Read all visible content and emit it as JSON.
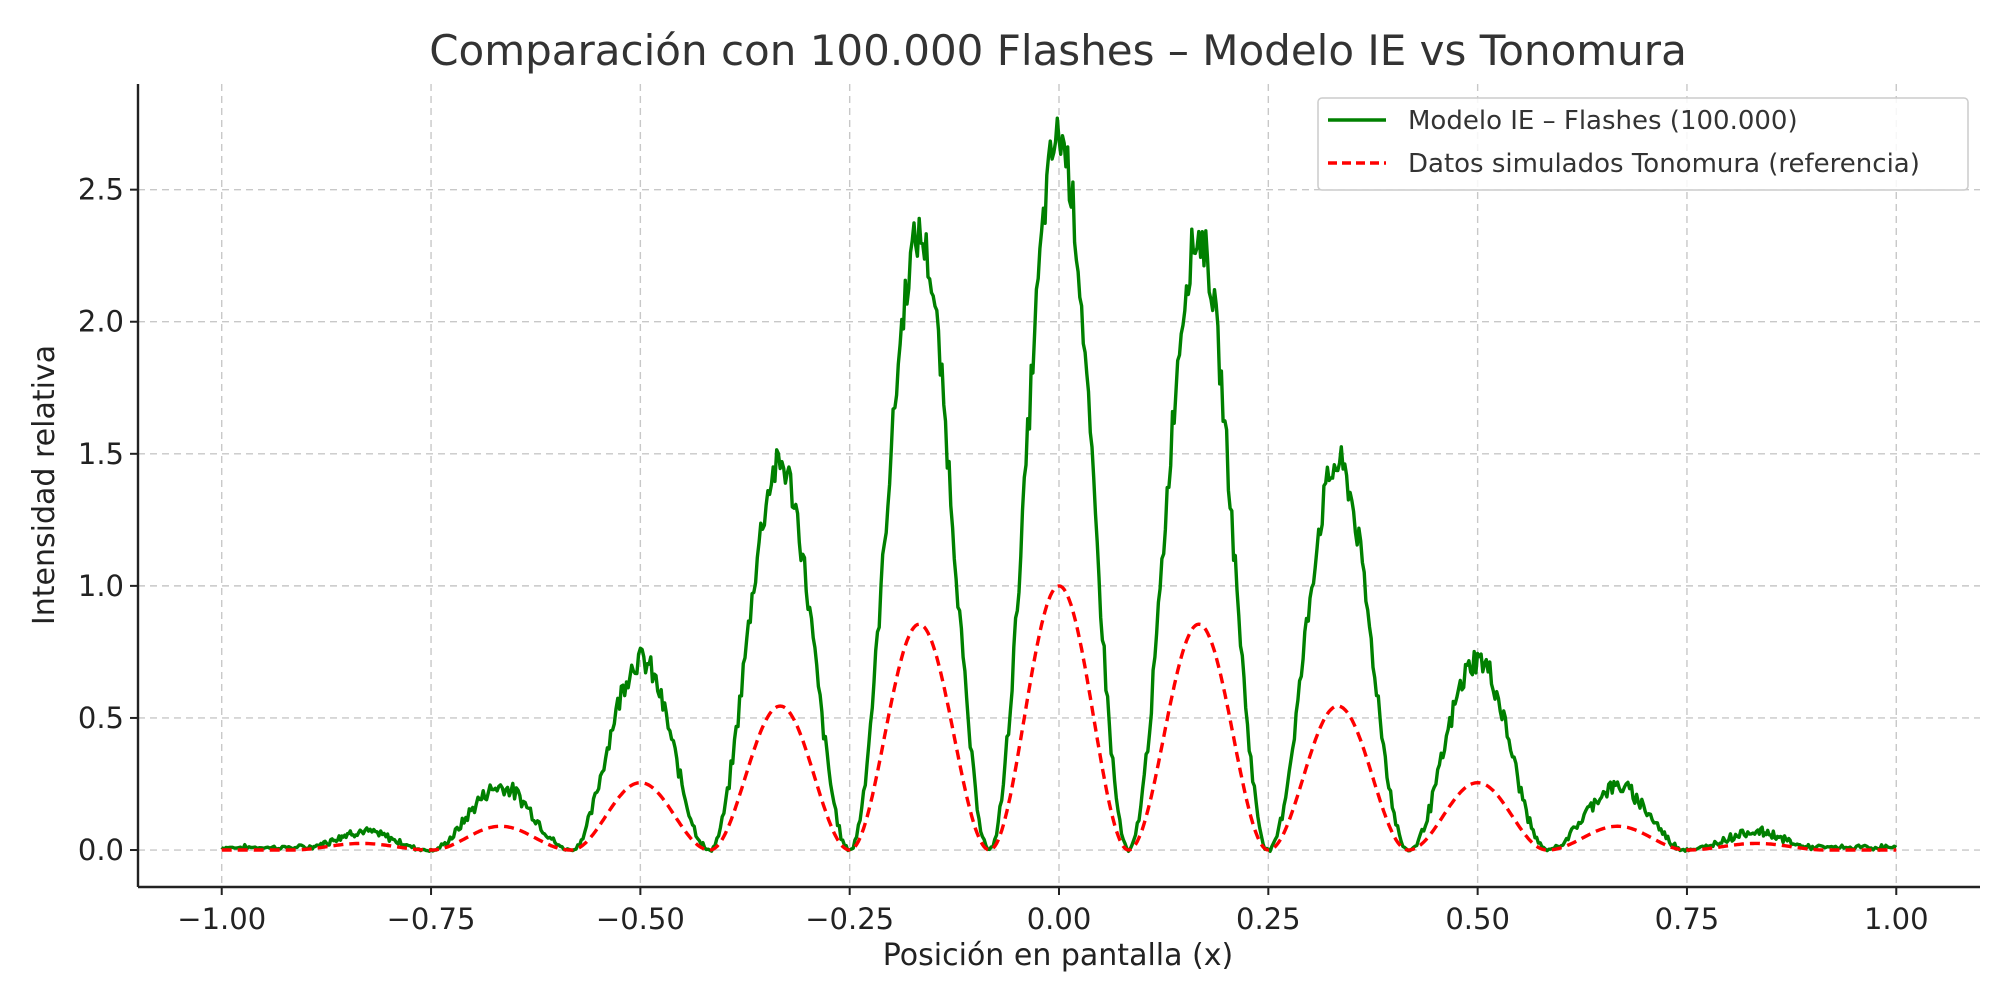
{
  "chart_data": {
    "type": "line",
    "title": "Comparación con 100.000 Flashes – Modelo IE vs Tonomura",
    "xlabel": "Posición en pantalla (x)",
    "ylabel": "Intensidad relativa",
    "xlim": [
      -1.1,
      1.1
    ],
    "ylim": [
      -0.14,
      2.9
    ],
    "xticks": [
      -1.0,
      -0.75,
      -0.5,
      -0.25,
      0.0,
      0.25,
      0.5,
      0.75,
      1.0
    ],
    "xtick_labels": [
      "−1.00",
      "−0.75",
      "−0.50",
      "−0.25",
      "0.00",
      "0.25",
      "0.50",
      "0.75",
      "1.00"
    ],
    "yticks": [
      0.0,
      0.5,
      1.0,
      1.5,
      2.0,
      2.5
    ],
    "ytick_labels": [
      "0.0",
      "0.5",
      "1.0",
      "1.5",
      "2.0",
      "2.5"
    ],
    "grid": true,
    "legend_position": "top-right",
    "series": [
      {
        "name": "Modelo IE – Flashes (100.000)",
        "color": "#008000",
        "style": "solid",
        "x": [
          -1.0,
          -0.9,
          -0.833,
          -0.75,
          -0.667,
          -0.583,
          -0.5,
          -0.417,
          -0.333,
          -0.25,
          -0.167,
          -0.083,
          0.0,
          0.083,
          0.167,
          0.25,
          0.333,
          0.417,
          0.5,
          0.583,
          0.667,
          0.75,
          0.833,
          0.9,
          1.0
        ],
        "y": [
          0.01,
          0.01,
          0.07,
          0.0,
          0.24,
          0.0,
          0.72,
          0.0,
          1.46,
          0.0,
          2.32,
          0.0,
          2.7,
          0.0,
          2.32,
          0.0,
          1.46,
          0.0,
          0.72,
          0.0,
          0.24,
          0.0,
          0.07,
          0.01,
          0.01
        ]
      },
      {
        "name": "Datos simulados Tonomura (referencia)",
        "color": "#ff0000",
        "style": "dashed",
        "x": [
          -1.0,
          -0.917,
          -0.833,
          -0.75,
          -0.667,
          -0.583,
          -0.5,
          -0.417,
          -0.333,
          -0.25,
          -0.167,
          -0.083,
          0.0,
          0.083,
          0.167,
          0.25,
          0.333,
          0.417,
          0.5,
          0.583,
          0.667,
          0.75,
          0.833,
          0.917,
          1.0
        ],
        "y": [
          0.0,
          0.0,
          0.025,
          0.0,
          0.09,
          0.0,
          0.255,
          0.0,
          0.545,
          0.0,
          0.855,
          0.0,
          1.0,
          0.0,
          0.855,
          0.0,
          0.545,
          0.0,
          0.255,
          0.0,
          0.09,
          0.0,
          0.025,
          0.0,
          0.0
        ]
      }
    ]
  }
}
